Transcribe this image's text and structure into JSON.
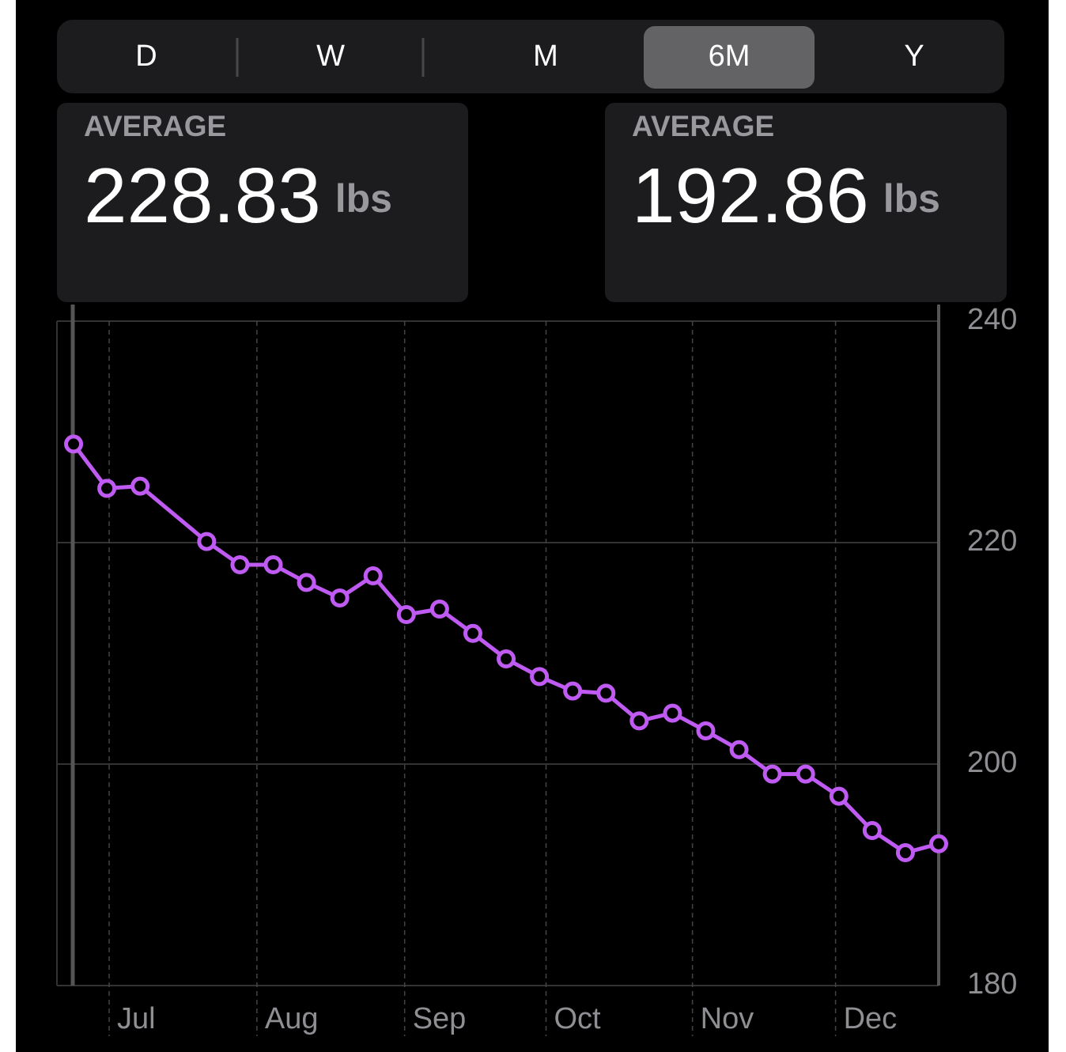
{
  "segments": [
    "D",
    "W",
    "M",
    "6M",
    "Y"
  ],
  "summaries": [
    {
      "label": "AVERAGE",
      "value": 228.83,
      "unit": "lbs"
    },
    {
      "label": "AVERAGE",
      "value": 192.86,
      "unit": "lbs"
    }
  ],
  "chart_data": {
    "type": "line",
    "x": [
      0,
      1,
      2,
      4,
      5,
      6,
      7,
      8,
      9,
      10,
      11,
      12,
      13,
      14,
      15,
      16,
      17,
      18,
      19,
      20,
      21,
      22,
      23,
      24,
      25,
      26
    ],
    "values": [
      228.9,
      224.9,
      225.1,
      220.1,
      218.0,
      218.0,
      216.4,
      215.0,
      217.0,
      213.5,
      214.0,
      211.8,
      209.5,
      207.9,
      206.6,
      206.4,
      203.9,
      204.6,
      203.0,
      201.3,
      199.1,
      199.1,
      197.1,
      194.0,
      192.0,
      192.8
    ],
    "color": "#bf5af2",
    "xlim": [
      -0.5,
      26
    ],
    "xticks": [
      {
        "value": 1.07,
        "label": "Jul"
      },
      {
        "value": 5.51,
        "label": "Aug"
      },
      {
        "value": 9.95,
        "label": "Sep"
      },
      {
        "value": 14.2,
        "label": "Oct"
      },
      {
        "value": 18.6,
        "label": "Nov"
      },
      {
        "value": 22.9,
        "label": "Dec"
      }
    ],
    "ylim": [
      180,
      240
    ],
    "yticks": [
      180,
      200,
      220,
      240
    ],
    "grid": true
  }
}
